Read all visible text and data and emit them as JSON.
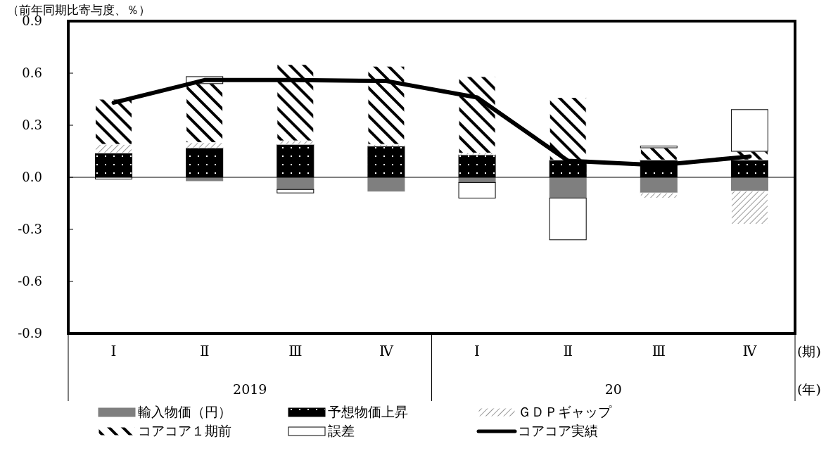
{
  "chart_data": {
    "type": "bar",
    "stacked": true,
    "ylabel": "（前年同期比寄与度、％）",
    "categories": [
      "Ⅰ",
      "Ⅱ",
      "Ⅲ",
      "Ⅳ",
      "Ⅰ",
      "Ⅱ",
      "Ⅲ",
      "Ⅳ"
    ],
    "series": [
      {
        "name": "輸入物価（円）",
        "color": "#7f7f7f",
        "values": [
          0,
          -0.02,
          -0.07,
          -0.08,
          -0.03,
          -0.12,
          -0.09,
          -0.08
        ]
      },
      {
        "name": "予想物価上昇",
        "color": "#000000",
        "values": [
          0.14,
          0.17,
          0.19,
          0.18,
          0.13,
          0.1,
          0.1,
          0.1
        ]
      },
      {
        "name": "ＧＤＰギャップ",
        "color": "#ffffff",
        "values": [
          0.05,
          0.03,
          0.02,
          0.01,
          0.01,
          0,
          -0.03,
          -0.19
        ]
      },
      {
        "name": "コアコア１期前",
        "color": "#ffffff",
        "values": [
          0.26,
          0.34,
          0.44,
          0.45,
          0.44,
          0.36,
          0.07,
          0.05
        ]
      },
      {
        "name": "誤差",
        "color": "#ffffff",
        "values": [
          -0.01,
          0.04,
          -0.02,
          0,
          -0.09,
          -0.24,
          0.01,
          0.24
        ]
      },
      {
        "name": "コアコア実績",
        "type": "line",
        "color": "#000000",
        "values": [
          0.43,
          0.56,
          0.56,
          0.555,
          0.46,
          0.095,
          0.07,
          0.12
        ]
      }
    ],
    "ylim": [
      -0.9,
      0.9
    ],
    "yticks": [
      {
        "value": 0.9,
        "label": "0.9"
      },
      {
        "value": 0.6,
        "label": "0.6"
      },
      {
        "value": 0.3,
        "label": "0.3"
      },
      {
        "value": 0,
        "label": "0.0"
      },
      {
        "value": -0.3,
        "label": "-0.3"
      },
      {
        "value": -0.6,
        "label": "-0.6"
      },
      {
        "value": -0.9,
        "label": "-0.9"
      }
    ],
    "ref_lines": [
      {
        "axis": "y",
        "value": 0,
        "color": "#000000"
      }
    ],
    "annotations": [
      "(期)",
      "(年)",
      "2019",
      "20"
    ],
    "legend": "bottom",
    "grid": false
  }
}
